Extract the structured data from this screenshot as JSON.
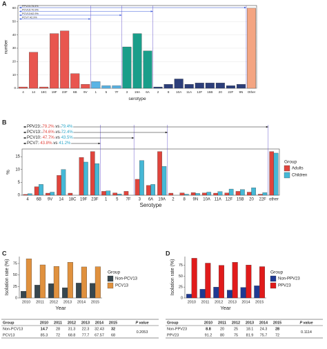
{
  "chart_data": [
    {
      "type": "bar",
      "panel": "A",
      "x_label": "serotype",
      "y_label": "number",
      "categories": [
        "4",
        "14",
        "18C",
        "19F",
        "23F",
        "6B",
        "9V",
        "1",
        "5",
        "7F",
        "3",
        "19A",
        "6A",
        "2",
        "8",
        "10A",
        "11A",
        "12F",
        "15B",
        "20",
        "22F",
        "9N",
        "Other"
      ],
      "values": [
        1,
        27,
        1,
        41,
        43,
        11,
        3,
        5,
        2,
        2,
        31,
        41,
        28,
        1,
        3,
        7,
        3,
        4,
        4,
        4,
        2,
        3,
        60
      ],
      "colors": [
        "#e8564f",
        "#e8564f",
        "#e8564f",
        "#e8564f",
        "#e8564f",
        "#e8564f",
        "#e8564f",
        "#5ab4e5",
        "#5ab4e5",
        "#5ab4e5",
        "#1a9e8a",
        "#1a9e8a",
        "#1a9e8a",
        "#2c3e7a",
        "#2c3e7a",
        "#2c3e7a",
        "#2c3e7a",
        "#2c3e7a",
        "#2c3e7a",
        "#2c3e7a",
        "#2c3e7a",
        "#2c3e7a",
        "#f4a582"
      ],
      "ylim": [
        0,
        62
      ],
      "yticks": [
        0,
        10,
        20,
        30,
        40,
        50,
        60
      ],
      "grid": true,
      "annotations": [
        "PPV23:78.5%",
        "PCV15:70.9%",
        "PCV13:62.9%",
        "PCV7:42.9%"
      ]
    },
    {
      "type": "bar",
      "panel": "B",
      "x_label": "Serotype",
      "y_label": "%",
      "legend_title": "Group",
      "categories": [
        "4",
        "6B",
        "9V",
        "14",
        "18C",
        "19F",
        "23F",
        "1",
        "5",
        "7F",
        "3",
        "6A",
        "19A",
        "2",
        "8",
        "9N",
        "10A",
        "11A",
        "12F",
        "15B",
        "20",
        "22F",
        "other"
      ],
      "series": [
        {
          "name": "Adults",
          "color": "#e0443c",
          "values": [
            0.3,
            3.3,
            0.8,
            7.7,
            0.8,
            14.7,
            17,
            1.5,
            0.9,
            1.5,
            6.2,
            3.8,
            17,
            0.8,
            0.9,
            1,
            0.9,
            0.8,
            0.9,
            1.5,
            1.2,
            0.4,
            17
          ]
        },
        {
          "name": "Children",
          "color": "#45b8d6",
          "values": [
            0.6,
            4.2,
            1.2,
            10,
            0,
            12.9,
            12.3,
            1.7,
            0.5,
            0,
            13.5,
            4.2,
            11.2,
            0,
            0.4,
            0.7,
            1.2,
            1.4,
            2.4,
            2.2,
            2.9,
            1,
            16.4
          ]
        }
      ],
      "ylim": [
        0,
        18
      ],
      "yticks": [
        0,
        5,
        10,
        15
      ],
      "grid": false,
      "annotations": [
        {
          "text": "PPV23:",
          "adults": "79.2%",
          "joiner": "vs",
          "children": "79.4%"
        },
        {
          "text": "PCV13:",
          "adults": "74.6%",
          "joiner": "vs",
          "children": "72.4%"
        },
        {
          "text": "PCV10:",
          "adults": "47.7%",
          "joiner": "vs",
          "children": "43.5%"
        },
        {
          "text": "PCV7:",
          "adults": "43.8%",
          "joiner": "vs",
          "children": "41.2%"
        }
      ]
    },
    {
      "type": "bar",
      "panel": "C",
      "x_label": "Year",
      "y_label": "Isolation rate (%)",
      "legend_title": "Group",
      "categories": [
        "2010",
        "2011",
        "2012",
        "2013",
        "2014",
        "2015"
      ],
      "series": [
        {
          "name": "Non-PCV13",
          "color": "#37474f",
          "values": [
            14.7,
            28,
            31.3,
            22.3,
            32.43,
            32
          ]
        },
        {
          "name": "PCV13",
          "color": "#e0913e",
          "values": [
            85.3,
            72,
            68.8,
            77.7,
            67.57,
            68
          ]
        }
      ],
      "ylim": [
        0,
        90
      ],
      "yticks": [
        0,
        25,
        50,
        75
      ],
      "grid": false,
      "table_header": "Group",
      "p_value_label": "P value",
      "p_value": 0.2053,
      "highlight": [
        0,
        5
      ]
    },
    {
      "type": "bar",
      "panel": "D",
      "x_label": "Year",
      "y_label": "Isolation rate (%)",
      "legend_title": "Group",
      "categories": [
        "2010",
        "2011",
        "2012",
        "2013",
        "2014",
        "2015"
      ],
      "series": [
        {
          "name": "Non-PPV23",
          "color": "#1f3a93",
          "values": [
            8.8,
            20,
            25,
            18.1,
            24.3,
            28
          ]
        },
        {
          "name": "PPV23",
          "color": "#e01b1b",
          "values": [
            91.2,
            80,
            75,
            81.9,
            75.7,
            72
          ]
        }
      ],
      "ylim": [
        0,
        95
      ],
      "yticks": [
        0,
        25,
        50,
        75
      ],
      "grid": false,
      "table_header": "Group",
      "p_value_label": "P value",
      "p_value": 0.1114,
      "highlight": [
        0,
        5
      ]
    }
  ]
}
